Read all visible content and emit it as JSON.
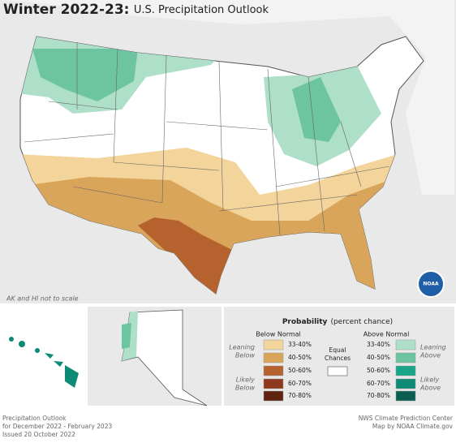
{
  "title": {
    "bold": "Winter 2022-23:",
    "rest": "U.S. Precipitation Outlook"
  },
  "map_note": "AK and HI not to scale",
  "logo": "NOAA",
  "legend": {
    "title": "Probability",
    "subtitle": "(percent chance)",
    "below": {
      "heading": "Below Normal",
      "leaning": [
        "Leaning",
        "Below"
      ],
      "likely": [
        "Likely",
        "Below"
      ],
      "bins": [
        {
          "label": "33-40%",
          "color": "#f3d49a"
        },
        {
          "label": "40-50%",
          "color": "#d9a55a"
        },
        {
          "label": "50-60%",
          "color": "#b5622e"
        },
        {
          "label": "60-70%",
          "color": "#8f3a1e"
        },
        {
          "label": "70-80%",
          "color": "#5e2410"
        }
      ]
    },
    "equal": [
      "Equal",
      "Chances"
    ],
    "above": {
      "heading": "Above Normal",
      "leaning": [
        "Leaning",
        "Above"
      ],
      "likely": [
        "Likely",
        "Above"
      ],
      "bins": [
        {
          "label": "33-40%",
          "color": "#aedfc8"
        },
        {
          "label": "40-50%",
          "color": "#6cc4a0"
        },
        {
          "label": "50-60%",
          "color": "#1aa58a"
        },
        {
          "label": "60-70%",
          "color": "#0f8a76"
        },
        {
          "label": "70-80%",
          "color": "#0b5e52"
        }
      ]
    }
  },
  "footer": {
    "left": [
      "Precipitation Outlook",
      "for December 2022 - February 2023",
      "Issued 20 October 2022"
    ],
    "right": [
      "NWS Climate Prediction Center",
      "Map by NOAA Climate.gov"
    ]
  }
}
